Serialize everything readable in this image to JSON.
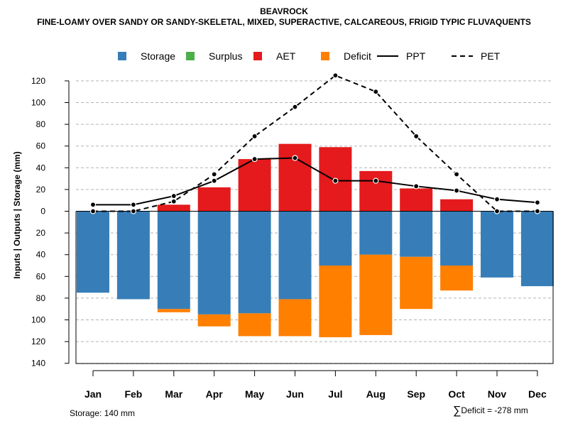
{
  "chart_data": {
    "type": "bar",
    "title": "BEAVROCK",
    "subtitle": "FINE-LOAMY OVER SANDY OR SANDY-SKELETAL, MIXED, SUPERACTIVE, CALCAREOUS, FRIGID TYPIC FLUVAQUENTS",
    "ylabel": "Inputs | Outputs | Storage    (mm)",
    "xlabel": "",
    "categories": [
      "Jan",
      "Feb",
      "Mar",
      "Apr",
      "May",
      "Jun",
      "Jul",
      "Aug",
      "Sep",
      "Oct",
      "Nov",
      "Dec"
    ],
    "ylim": [
      -140,
      130
    ],
    "yticks": [
      120,
      100,
      80,
      60,
      40,
      20,
      0,
      -20,
      -40,
      -60,
      -80,
      -100,
      -120,
      -140
    ],
    "ytick_labels": [
      "120",
      "100",
      "80",
      "60",
      "40",
      "20",
      "0",
      "20",
      "40",
      "60",
      "80",
      "100",
      "120",
      "140"
    ],
    "grid": true,
    "legend": {
      "position": "top",
      "entries": [
        {
          "label": "Storage",
          "kind": "box",
          "color": "#377EB8"
        },
        {
          "label": "Surplus",
          "kind": "box",
          "color": "#4DAF4A"
        },
        {
          "label": "AET",
          "kind": "box",
          "color": "#E41A1C"
        },
        {
          "label": "Deficit",
          "kind": "box",
          "color": "#FF7F00"
        },
        {
          "label": "PPT",
          "kind": "solid-line",
          "color": "#000000"
        },
        {
          "label": "PET",
          "kind": "dashed-line",
          "color": "#000000"
        }
      ]
    },
    "series": [
      {
        "name": "Storage",
        "color": "#377EB8",
        "direction": "down",
        "values": [
          75,
          81,
          90,
          95,
          94,
          81,
          50,
          40,
          42,
          50,
          61,
          69
        ]
      },
      {
        "name": "Surplus",
        "color": "#4DAF4A",
        "direction": "up",
        "values": [
          0,
          0,
          0,
          0,
          0,
          0,
          0,
          0,
          0,
          0,
          0,
          0
        ]
      },
      {
        "name": "AET",
        "color": "#E41A1C",
        "direction": "up",
        "values": [
          0,
          0,
          6,
          22,
          48,
          62,
          59,
          37,
          21,
          11,
          0,
          0
        ]
      },
      {
        "name": "Deficit",
        "color": "#FF7F00",
        "direction": "down",
        "values": [
          0,
          0,
          3,
          11,
          21,
          34,
          66,
          74,
          48,
          23,
          0,
          0
        ]
      },
      {
        "name": "PPT",
        "color": "#000000",
        "style": "solid",
        "values": [
          6,
          6,
          14,
          28,
          48,
          49,
          28,
          28,
          23,
          19,
          11,
          8
        ]
      },
      {
        "name": "PET",
        "color": "#000000",
        "style": "dashed",
        "values": [
          0,
          0,
          9,
          34,
          69,
          96,
          125,
          110,
          69,
          34,
          0,
          0
        ]
      }
    ]
  },
  "footer": {
    "storage_note": "Storage: 140 mm",
    "deficit_sigma": "∑",
    "deficit_note": "Deficit = -278 mm"
  }
}
